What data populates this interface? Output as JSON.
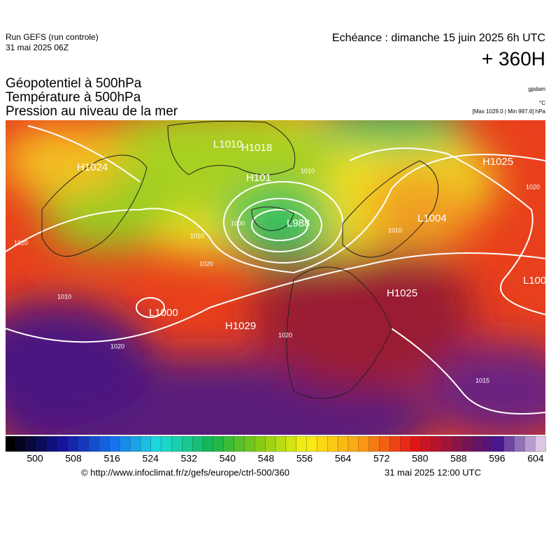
{
  "header": {
    "run": "Run GEFS (run controle)",
    "run_date": "31 mai 2025 06Z",
    "echeance": "Echéance : dimanche 15 juin 2025 6h UTC",
    "lead": "+ 360H",
    "titles": [
      "Géopotentiel à 500hPa",
      "Température à 500hPa",
      "Pression au niveau de la mer"
    ],
    "units": [
      "gpdam",
      "°C",
      "[Max 1029.0 | Min 987.6] hPa"
    ]
  },
  "map": {
    "centers": [
      "H1024",
      "L1010",
      "H1018",
      "H101",
      "H1025",
      "L988",
      "L1004",
      "L100",
      "H1025",
      "L1000",
      "H1029"
    ],
    "isobar_labels": [
      "1010",
      "1000",
      "1010",
      "1020",
      "1020",
      "1010",
      "1020",
      "1020",
      "1015",
      "1020",
      "1010"
    ]
  },
  "colorbar": {
    "ticks": [
      "500",
      "508",
      "516",
      "524",
      "532",
      "540",
      "548",
      "556",
      "564",
      "572",
      "580",
      "588",
      "596",
      "604"
    ]
  },
  "footer": {
    "source": "© http://www.infoclimat.fr/z/gefs/europe/ctrl-500/360",
    "issued": "31 mai 2025 12:00 UTC"
  }
}
